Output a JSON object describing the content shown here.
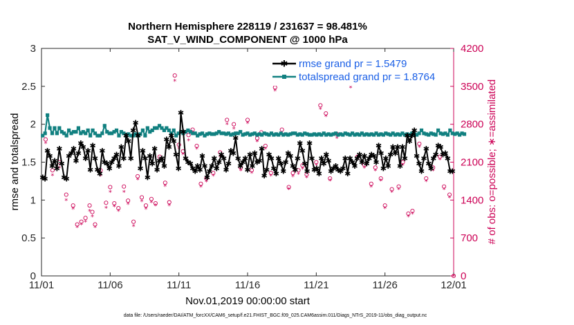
{
  "chart_data": {
    "type": "line",
    "title": "Northern Hemisphere 228119 / 231637 = 98.481%",
    "subtitle": "SAT_V_WIND_COMPONENT @ 1000 hPa",
    "xlabel": "Nov.01,2019 00:00:00 start",
    "ylabel": "rmse and totalspread",
    "ylabel_right": "# of obs: o=possible; ∗=assimilated",
    "footnote": "data file: /Users/raeder/DAI/ATM_forcXX/CAM6_setup/f.e21.FHIST_BGC.f09_025.CAM6assim.011/Diags_NTrS_2019-11/obs_diag_output.nc",
    "xlim": [
      0,
      30
    ],
    "ylim": [
      0,
      3
    ],
    "ylim_right": [
      0,
      4200
    ],
    "xticks": [
      0,
      5,
      10,
      15,
      20,
      25,
      30
    ],
    "xtick_labels": [
      "11/01",
      "11/06",
      "11/11",
      "11/16",
      "11/21",
      "11/26",
      "12/01"
    ],
    "yticks": [
      0,
      0.5,
      1,
      1.5,
      2,
      2.5,
      3
    ],
    "ytick_labels": [
      "0",
      "0.5",
      "1",
      "1.5",
      "2",
      "2.5",
      "3"
    ],
    "yticks_right": [
      0,
      700,
      1400,
      2100,
      2800,
      3500,
      4200
    ],
    "ytick_labels_right": [
      "0",
      "700",
      "1400",
      "2100",
      "2800",
      "3500",
      "4200"
    ],
    "grid": false,
    "legend_position": "top-right",
    "colors": {
      "rmse": "#000000",
      "totalspread": "#118080",
      "obs": "#cc0055",
      "legend_text": "#1a5fe6",
      "right_axis": "#cc0055"
    },
    "series": [
      {
        "name": "rmse",
        "legend": "rmse grand pr = 1.5479",
        "values": [
          1.3,
          1.28,
          1.65,
          1.58,
          1.45,
          1.52,
          1.42,
          1.68,
          1.48,
          1.3,
          1.28,
          1.58,
          1.62,
          1.68,
          1.52,
          1.62,
          1.75,
          1.7,
          1.55,
          1.65,
          1.4,
          1.72,
          1.55,
          1.4,
          1.35,
          1.65,
          1.5,
          1.48,
          1.42,
          1.5,
          1.55,
          1.6,
          1.45,
          1.7,
          1.55,
          1.85,
          1.78,
          1.55,
          1.92,
          2.02,
          1.85,
          1.42,
          1.65,
          1.55,
          1.3,
          1.58,
          1.48,
          1.68,
          1.4,
          1.52,
          1.55,
          1.45,
          1.8,
          1.7,
          1.85,
          1.78,
          1.6,
          1.42,
          2.15,
          1.9,
          1.55,
          1.5,
          1.48,
          1.42,
          1.38,
          1.45,
          1.4,
          1.58,
          1.45,
          1.3,
          1.38,
          1.45,
          1.55,
          1.42,
          1.5,
          1.6,
          1.55,
          1.4,
          1.48,
          1.65,
          1.62,
          1.82,
          1.55,
          1.45,
          1.5,
          1.55,
          1.4,
          1.6,
          1.45,
          1.62,
          1.5,
          1.52,
          1.68,
          1.32,
          1.4,
          1.6,
          1.55,
          1.42,
          1.35,
          1.55,
          1.48,
          1.38,
          1.5,
          1.62,
          1.58,
          1.45,
          1.4,
          1.55,
          1.75,
          1.65,
          1.48,
          1.38,
          1.75,
          1.55,
          1.4,
          1.42,
          1.35,
          1.55,
          1.48,
          1.6,
          1.52,
          1.38,
          1.42,
          1.45,
          1.4,
          1.38,
          1.42,
          1.55,
          1.35,
          1.55,
          1.5,
          1.45,
          1.55,
          1.6,
          1.5,
          1.58,
          1.48,
          1.55,
          1.6,
          1.58,
          1.5,
          1.72,
          1.62,
          1.42,
          1.55,
          1.45,
          1.6,
          1.7,
          1.62,
          1.7,
          1.45,
          1.7,
          1.55,
          1.85,
          1.78,
          1.85,
          1.92,
          1.58,
          1.48,
          1.38,
          1.55,
          1.68,
          1.48,
          1.42,
          1.55,
          1.6,
          1.72,
          1.7,
          1.6,
          1.62,
          1.55,
          1.38,
          1.38
        ]
      },
      {
        "name": "totalspread",
        "legend": "totalspread grand pr = 1.8764",
        "values": [
          1.85,
          1.88,
          2.12,
          1.95,
          1.88,
          1.95,
          1.88,
          1.95,
          1.9,
          1.88,
          1.85,
          1.92,
          1.88,
          1.9,
          1.9,
          1.95,
          1.88,
          1.9,
          1.88,
          1.92,
          1.85,
          1.92,
          1.88,
          1.85,
          1.85,
          1.88,
          1.98,
          1.9,
          1.88,
          1.88,
          1.9,
          1.92,
          1.85,
          1.9,
          1.88,
          1.85,
          1.87,
          1.85,
          1.85,
          1.87,
          1.85,
          1.87,
          1.92,
          1.85,
          1.95,
          1.9,
          1.92,
          1.95,
          1.95,
          1.98,
          1.95,
          1.92,
          1.95,
          1.92,
          1.88,
          1.92,
          1.85,
          1.88,
          1.9,
          1.88,
          1.9,
          1.92,
          1.9,
          1.88,
          1.88,
          1.85,
          1.87,
          1.88,
          1.85,
          1.87,
          1.88,
          1.87,
          1.87,
          1.88,
          1.9,
          1.88,
          1.88,
          1.87,
          1.88,
          1.86,
          1.87,
          1.88,
          1.88,
          1.9,
          1.86,
          1.87,
          1.88,
          1.86,
          1.87,
          1.88,
          1.86,
          1.87,
          1.86,
          1.88,
          1.87,
          1.86,
          1.88,
          1.86,
          1.87,
          1.86,
          1.88,
          1.86,
          1.87,
          1.86,
          1.87,
          1.88,
          1.88,
          1.86,
          1.87,
          1.86,
          1.88,
          1.87,
          1.86,
          1.86,
          1.87,
          1.86,
          1.87,
          1.86,
          1.88,
          1.86,
          1.87,
          1.86,
          1.87,
          1.88,
          1.86,
          1.87,
          1.86,
          1.88,
          1.87,
          1.86,
          1.88,
          1.86,
          1.87,
          1.86,
          1.88,
          1.86,
          1.87,
          1.86,
          1.87,
          1.86,
          1.88,
          1.86,
          1.87,
          1.86,
          1.88,
          1.87,
          1.86,
          1.88,
          1.86,
          1.87,
          1.86,
          1.88,
          1.86,
          1.87,
          1.86,
          1.88,
          1.87,
          1.86,
          1.88,
          1.92,
          1.88,
          1.87,
          1.86,
          1.88,
          1.87,
          1.86,
          1.92,
          1.88,
          1.87,
          1.88,
          1.86,
          1.92,
          1.88,
          1.87,
          1.88,
          1.86,
          1.88,
          1.87
        ]
      }
    ],
    "obs_points": {
      "name": "# of obs",
      "x": [
        0.3,
        0.8,
        1.3,
        1.8,
        2.3,
        2.6,
        2.9,
        3.2,
        3.5,
        3.7,
        3.9,
        4.3,
        4.7,
        5.0,
        5.3,
        5.6,
        6.0,
        6.3,
        6.7,
        7.0,
        7.3,
        7.6,
        8.0,
        8.3,
        8.6,
        9.0,
        9.3,
        9.7,
        10.0,
        10.3,
        10.7,
        11.0,
        11.3,
        11.6,
        12.0,
        12.5,
        13.0,
        13.5,
        14.0,
        14.5,
        15.0,
        15.3,
        15.7,
        16.0,
        16.3,
        16.7,
        17.0,
        17.5,
        18.0,
        18.3,
        18.7,
        19.0,
        19.3,
        19.7,
        20.0,
        20.3,
        20.7,
        21.0,
        21.5,
        22.0,
        22.5,
        23.0,
        23.5,
        24.0,
        24.3,
        24.7,
        25.0,
        25.5,
        26.0,
        26.3,
        26.7,
        27.0,
        27.5,
        28.0,
        28.5,
        29.0,
        29.3,
        29.7,
        30.0
      ],
      "possible": [
        2520,
        1950,
        2100,
        1500,
        1300,
        950,
        1000,
        1070,
        1300,
        1180,
        950,
        1950,
        1350,
        1640,
        1340,
        1250,
        1650,
        1390,
        1000,
        1840,
        1450,
        1300,
        1420,
        1340,
        2200,
        1720,
        1360,
        3700,
        2420,
        2300,
        2600,
        2700,
        2400,
        1700,
        1800,
        1900,
        2280,
        2880,
        2800,
        2000,
        2880,
        1950,
        2540,
        2650,
        2400,
        1900,
        3480,
        2700,
        1640,
        1900,
        1950,
        2040,
        1870,
        3800,
        2100,
        3150,
        3000,
        1800,
        2620,
        3600,
        3550,
        2200,
        2050,
        1700,
        2000,
        1800,
        1300,
        1600,
        1650,
        2100,
        1150,
        1200,
        2440,
        1800,
        2000,
        2200,
        1650,
        1500,
        0
      ],
      "assimilated": [
        2450,
        1860,
        2000,
        1400,
        1240,
        900,
        950,
        1000,
        1200,
        1100,
        900,
        1850,
        1260,
        1550,
        1280,
        1200,
        1550,
        1330,
        920,
        1780,
        1380,
        1240,
        1360,
        1300,
        2150,
        1660,
        1300,
        3600,
        2350,
        2250,
        2500,
        2650,
        2350,
        1650,
        1740,
        1850,
        2200,
        2800,
        2720,
        1950,
        2820,
        1900,
        2480,
        2600,
        2350,
        1850,
        3420,
        2620,
        1600,
        1840,
        1880,
        1980,
        1820,
        3760,
        2050,
        3080,
        2950,
        1760,
        2550,
        3550,
        3480,
        2150,
        2000,
        1650,
        1950,
        1760,
        1250,
        1550,
        1600,
        2050,
        1100,
        1150,
        2380,
        1750,
        1950,
        2150,
        1600,
        1450,
        0
      ]
    },
    "legend": [
      "rmse grand pr = 1.5479",
      "totalspread grand pr = 1.8764"
    ]
  }
}
